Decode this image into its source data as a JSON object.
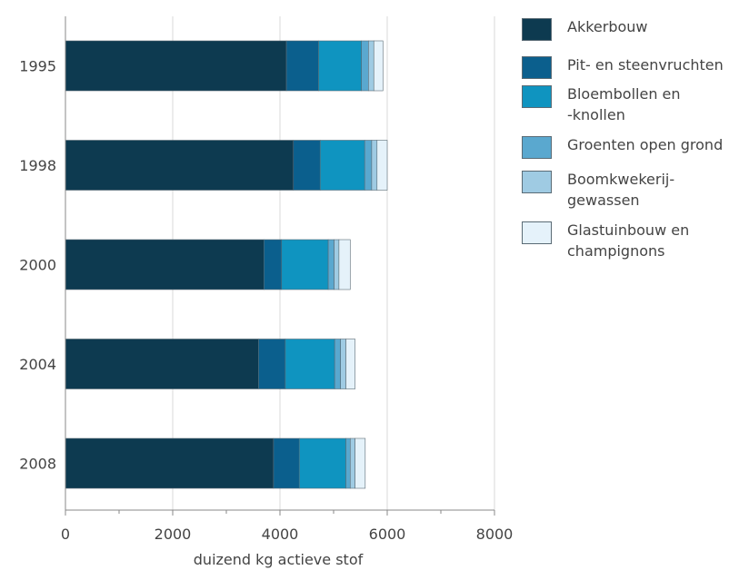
{
  "chart_data": {
    "type": "bar",
    "orientation": "horizontal",
    "stacked": true,
    "categories": [
      "1995",
      "1998",
      "2000",
      "2004",
      "2008"
    ],
    "series": [
      {
        "name": "Akkerbouw",
        "color": "#0d3a50",
        "values": [
          4120,
          4250,
          3700,
          3600,
          3880
        ]
      },
      {
        "name": "Pit- en steenvruchten",
        "color": "#0b5f8d",
        "values": [
          600,
          500,
          330,
          500,
          480
        ]
      },
      {
        "name": "Bloembollen en -knollen",
        "color": "#0f94c0",
        "values": [
          800,
          830,
          870,
          920,
          870
        ]
      },
      {
        "name": "Groenten open grond",
        "color": "#5aa8cf",
        "values": [
          130,
          130,
          110,
          110,
          80
        ]
      },
      {
        "name": "Boomkwekerijgewassen",
        "color": "#9fcbe3",
        "values": [
          100,
          100,
          90,
          100,
          90
        ]
      },
      {
        "name": "Glastuinbouw en champignons",
        "color": "#e5f2fa",
        "values": [
          170,
          190,
          210,
          170,
          190
        ]
      }
    ],
    "xlabel": "duizend kg actieve stof",
    "xlim": [
      0,
      8000
    ],
    "xticks": [
      "0",
      "2000",
      "4000",
      "6000",
      "8000"
    ],
    "grid": true,
    "legend_position": "right",
    "legend_labels": [
      [
        "Akkerbouw"
      ],
      [
        "Pit- en steenvruchten"
      ],
      [
        "Bloembollen en",
        "-knollen"
      ],
      [
        "Groenten open grond"
      ],
      [
        "Boomkwekerij-",
        "gewassen"
      ],
      [
        "Glastuinbouw en",
        "champignons"
      ]
    ]
  }
}
